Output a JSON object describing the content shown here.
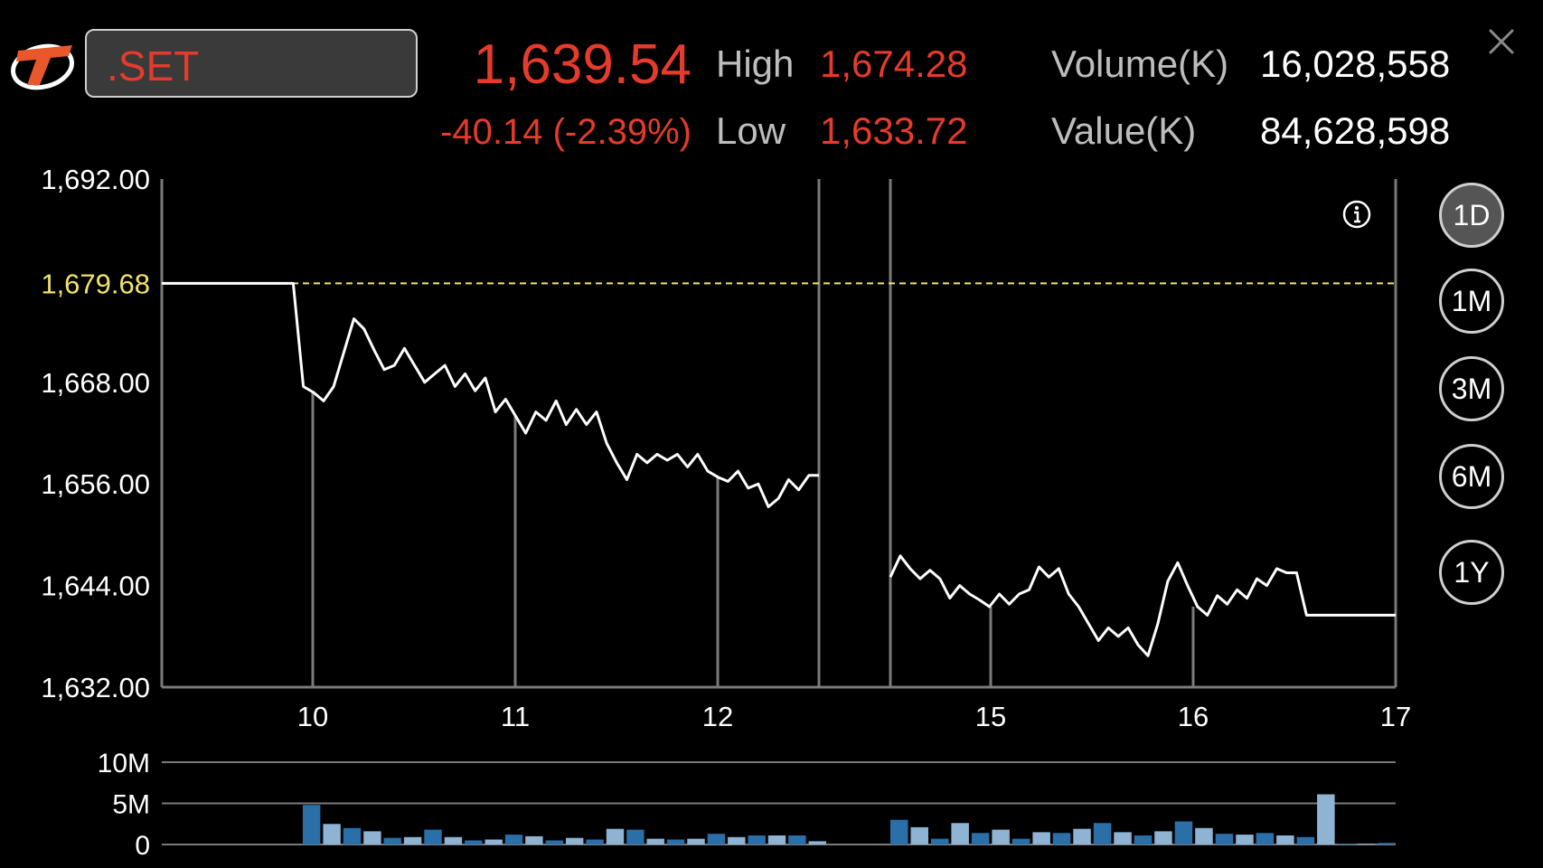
{
  "header": {
    "symbol": ".SET",
    "last_price": "1,639.54",
    "change": "-40.14 (-2.39%)",
    "high_label": "High",
    "high_value": "1,674.28",
    "low_label": "Low",
    "low_value": "1,633.72",
    "volume_label": "Volume(K)",
    "volume_value": "16,028,558",
    "value_label": "Value(K)",
    "value_value": "84,628,598"
  },
  "icons": {
    "logo": "brand-logo-icon",
    "close": "close-icon",
    "info": "info-icon"
  },
  "range_buttons": [
    {
      "label": "1D",
      "active": true
    },
    {
      "label": "1M",
      "active": false
    },
    {
      "label": "3M",
      "active": false
    },
    {
      "label": "6M",
      "active": false
    },
    {
      "label": "1Y",
      "active": false
    }
  ],
  "colors": {
    "down": "#e53b2c",
    "reference": "#f2e36a",
    "line": "#ffffff",
    "volume": "#2a6fa8",
    "volume_light": "#8fb3d3"
  },
  "chart_data": {
    "type": "line",
    "price_chart": {
      "ylim": [
        1632,
        1692
      ],
      "y_tick_labels": [
        "1,692.00",
        "1,668.00",
        "1,656.00",
        "1,644.00",
        "1,632.00"
      ],
      "y_ticks": [
        1692,
        1668,
        1656,
        1644,
        1632
      ],
      "reference_label": "1,679.68",
      "reference_value": 1679.68,
      "x_tick_labels": [
        "10",
        "11",
        "12",
        "15",
        "16",
        "17"
      ],
      "morning_session": [
        1679.68,
        1679.68,
        1679.68,
        1679.68,
        1679.68,
        1679.68,
        1679.68,
        1679.68,
        1679.68,
        1679.68,
        1679.68,
        1679.68,
        1679.68,
        1679.68,
        1667.5,
        1666.8,
        1665.8,
        1667.5,
        1671.5,
        1675.5,
        1674.3,
        1671.8,
        1669.5,
        1670.0,
        1672.0,
        1670.0,
        1668.0,
        1669.0,
        1670.0,
        1667.5,
        1669.0,
        1667.0,
        1668.5,
        1664.5,
        1666.0,
        1664.0,
        1662.0,
        1664.5,
        1663.5,
        1665.8,
        1663.0,
        1664.8,
        1663.0,
        1664.5,
        1660.8,
        1658.5,
        1656.5,
        1659.5,
        1658.5,
        1659.5,
        1658.8,
        1659.5,
        1658.0,
        1659.5,
        1657.5,
        1656.8,
        1656.3,
        1657.5,
        1655.5,
        1656.0,
        1653.3,
        1654.3,
        1656.5,
        1655.3,
        1657.0,
        1657.0
      ],
      "afternoon_session": [
        1645.0,
        1647.5,
        1646.0,
        1644.8,
        1645.8,
        1644.8,
        1642.5,
        1644.0,
        1643.0,
        1642.3,
        1641.5,
        1643.0,
        1641.8,
        1643.0,
        1643.5,
        1646.2,
        1645.0,
        1646.0,
        1643.0,
        1641.5,
        1639.5,
        1637.5,
        1639.0,
        1638.0,
        1639.0,
        1637.0,
        1635.7,
        1639.5,
        1644.5,
        1646.7,
        1644.0,
        1641.5,
        1640.5,
        1642.8,
        1641.8,
        1643.5,
        1642.5,
        1644.8,
        1644.0,
        1646.0,
        1645.5,
        1645.5,
        1640.5,
        1640.5,
        1640.5,
        1640.5,
        1640.5,
        1640.5,
        1640.5,
        1640.5,
        1640.5,
        1640.5
      ]
    },
    "volume_chart": {
      "ylim": [
        0,
        10
      ],
      "unit": "M",
      "y_tick_labels": [
        "10M",
        "5M",
        "0"
      ],
      "morning_bars": [
        4.8,
        2.5,
        2.0,
        1.6,
        0.8,
        0.9,
        1.8,
        0.9,
        0.5,
        0.6,
        1.2,
        1.0,
        0.5,
        0.8,
        0.6,
        1.9,
        1.8,
        0.7,
        0.6,
        0.7,
        1.3,
        0.9,
        1.1,
        1.1,
        1.1,
        0.4
      ],
      "afternoon_bars": [
        3.0,
        2.1,
        0.7,
        2.6,
        1.4,
        1.8,
        0.7,
        1.5,
        1.4,
        1.9,
        2.6,
        1.5,
        1.1,
        1.6,
        2.8,
        2.0,
        1.3,
        1.2,
        1.4,
        1.1,
        0.9,
        6.1,
        0.1,
        0.1,
        0.2
      ]
    }
  }
}
